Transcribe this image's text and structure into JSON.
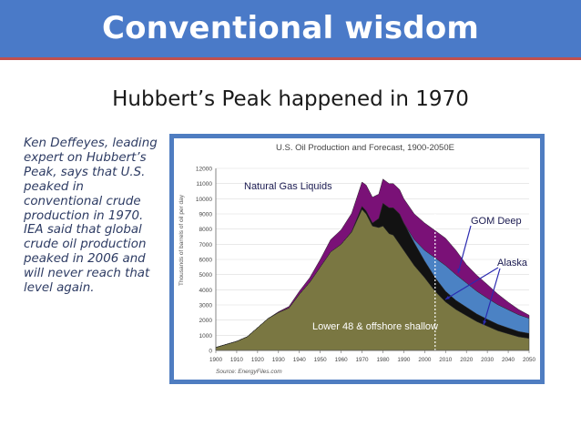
{
  "slide": {
    "title": "Conventional wisdom",
    "subtitle": "Hubbert’s Peak happened in 1970",
    "side_text": "Ken Deffeyes, leading expert on Hubbert’s Peak, says that U.S. peaked in conventional crude production in 1970.  IEA said that global crude oil production peaked in 2006 and will never reach that level again."
  },
  "chart_data": {
    "type": "area",
    "title": "U.S. Oil Production and Forecast, 1900-2050E",
    "xlabel": "",
    "ylabel": "Thousands of barrels of oil per day",
    "source": "Source: EnergyFiles.com",
    "xlim": [
      1900,
      2050
    ],
    "ylim": [
      0,
      12000
    ],
    "x_ticks": [
      "1900",
      "1910",
      "1920",
      "1930",
      "1940",
      "1950",
      "1960",
      "1970",
      "1980",
      "1990",
      "2000",
      "2010",
      "2020",
      "2030",
      "2040",
      "2050"
    ],
    "y_ticks": [
      "0",
      "1000",
      "2000",
      "3000",
      "4000",
      "5000",
      "6000",
      "7000",
      "8000",
      "9000",
      "10000",
      "11000",
      "12000"
    ],
    "forecast_marker_year": 2005,
    "grid": true,
    "x": [
      1900,
      1905,
      1910,
      1915,
      1920,
      1925,
      1930,
      1935,
      1940,
      1945,
      1950,
      1955,
      1960,
      1965,
      1970,
      1972,
      1975,
      1978,
      1980,
      1983,
      1985,
      1988,
      1990,
      1995,
      2000,
      2005,
      2010,
      2015,
      2020,
      2025,
      2030,
      2035,
      2040,
      2045,
      2050
    ],
    "series": [
      {
        "name": "Lower 48 & offshore shallow",
        "color": "#7a7742",
        "values": [
          200,
          400,
          600,
          900,
          1500,
          2100,
          2500,
          2800,
          3700,
          4500,
          5500,
          6500,
          7000,
          7800,
          9300,
          9000,
          8200,
          8100,
          8200,
          7700,
          7600,
          7000,
          6600,
          5600,
          4800,
          3900,
          3200,
          2700,
          2300,
          1900,
          1600,
          1300,
          1100,
          900,
          800
        ]
      },
      {
        "name": "Alaska",
        "color": "#121212",
        "values": [
          0,
          0,
          0,
          0,
          0,
          0,
          0,
          0,
          0,
          0,
          0,
          0,
          0,
          30,
          200,
          200,
          200,
          600,
          1500,
          1700,
          1800,
          2000,
          1800,
          1500,
          1100,
          900,
          700,
          600,
          550,
          500,
          450,
          420,
          380,
          350,
          320
        ]
      },
      {
        "name": "GOM Deep",
        "color": "#4b82c4",
        "values": [
          0,
          0,
          0,
          0,
          0,
          0,
          0,
          0,
          0,
          0,
          0,
          0,
          0,
          0,
          0,
          0,
          0,
          0,
          0,
          0,
          0,
          0,
          0,
          200,
          700,
          1300,
          1700,
          1700,
          1600,
          1500,
          1400,
          1300,
          1200,
          1100,
          1000
        ]
      },
      {
        "name": "Natural Gas Liquids",
        "color": "#7a1177",
        "values": [
          0,
          0,
          0,
          0,
          0,
          0,
          50,
          100,
          200,
          300,
          500,
          800,
          950,
          1200,
          1600,
          1700,
          1700,
          1600,
          1600,
          1600,
          1600,
          1600,
          1600,
          1700,
          1800,
          1800,
          1800,
          1600,
          1200,
          1050,
          900,
          700,
          500,
          350,
          200
        ]
      }
    ],
    "annotations": [
      "Natural Gas Liquids",
      "GOM Deep",
      "Alaska",
      "Lower 48 & offshore shallow"
    ]
  }
}
